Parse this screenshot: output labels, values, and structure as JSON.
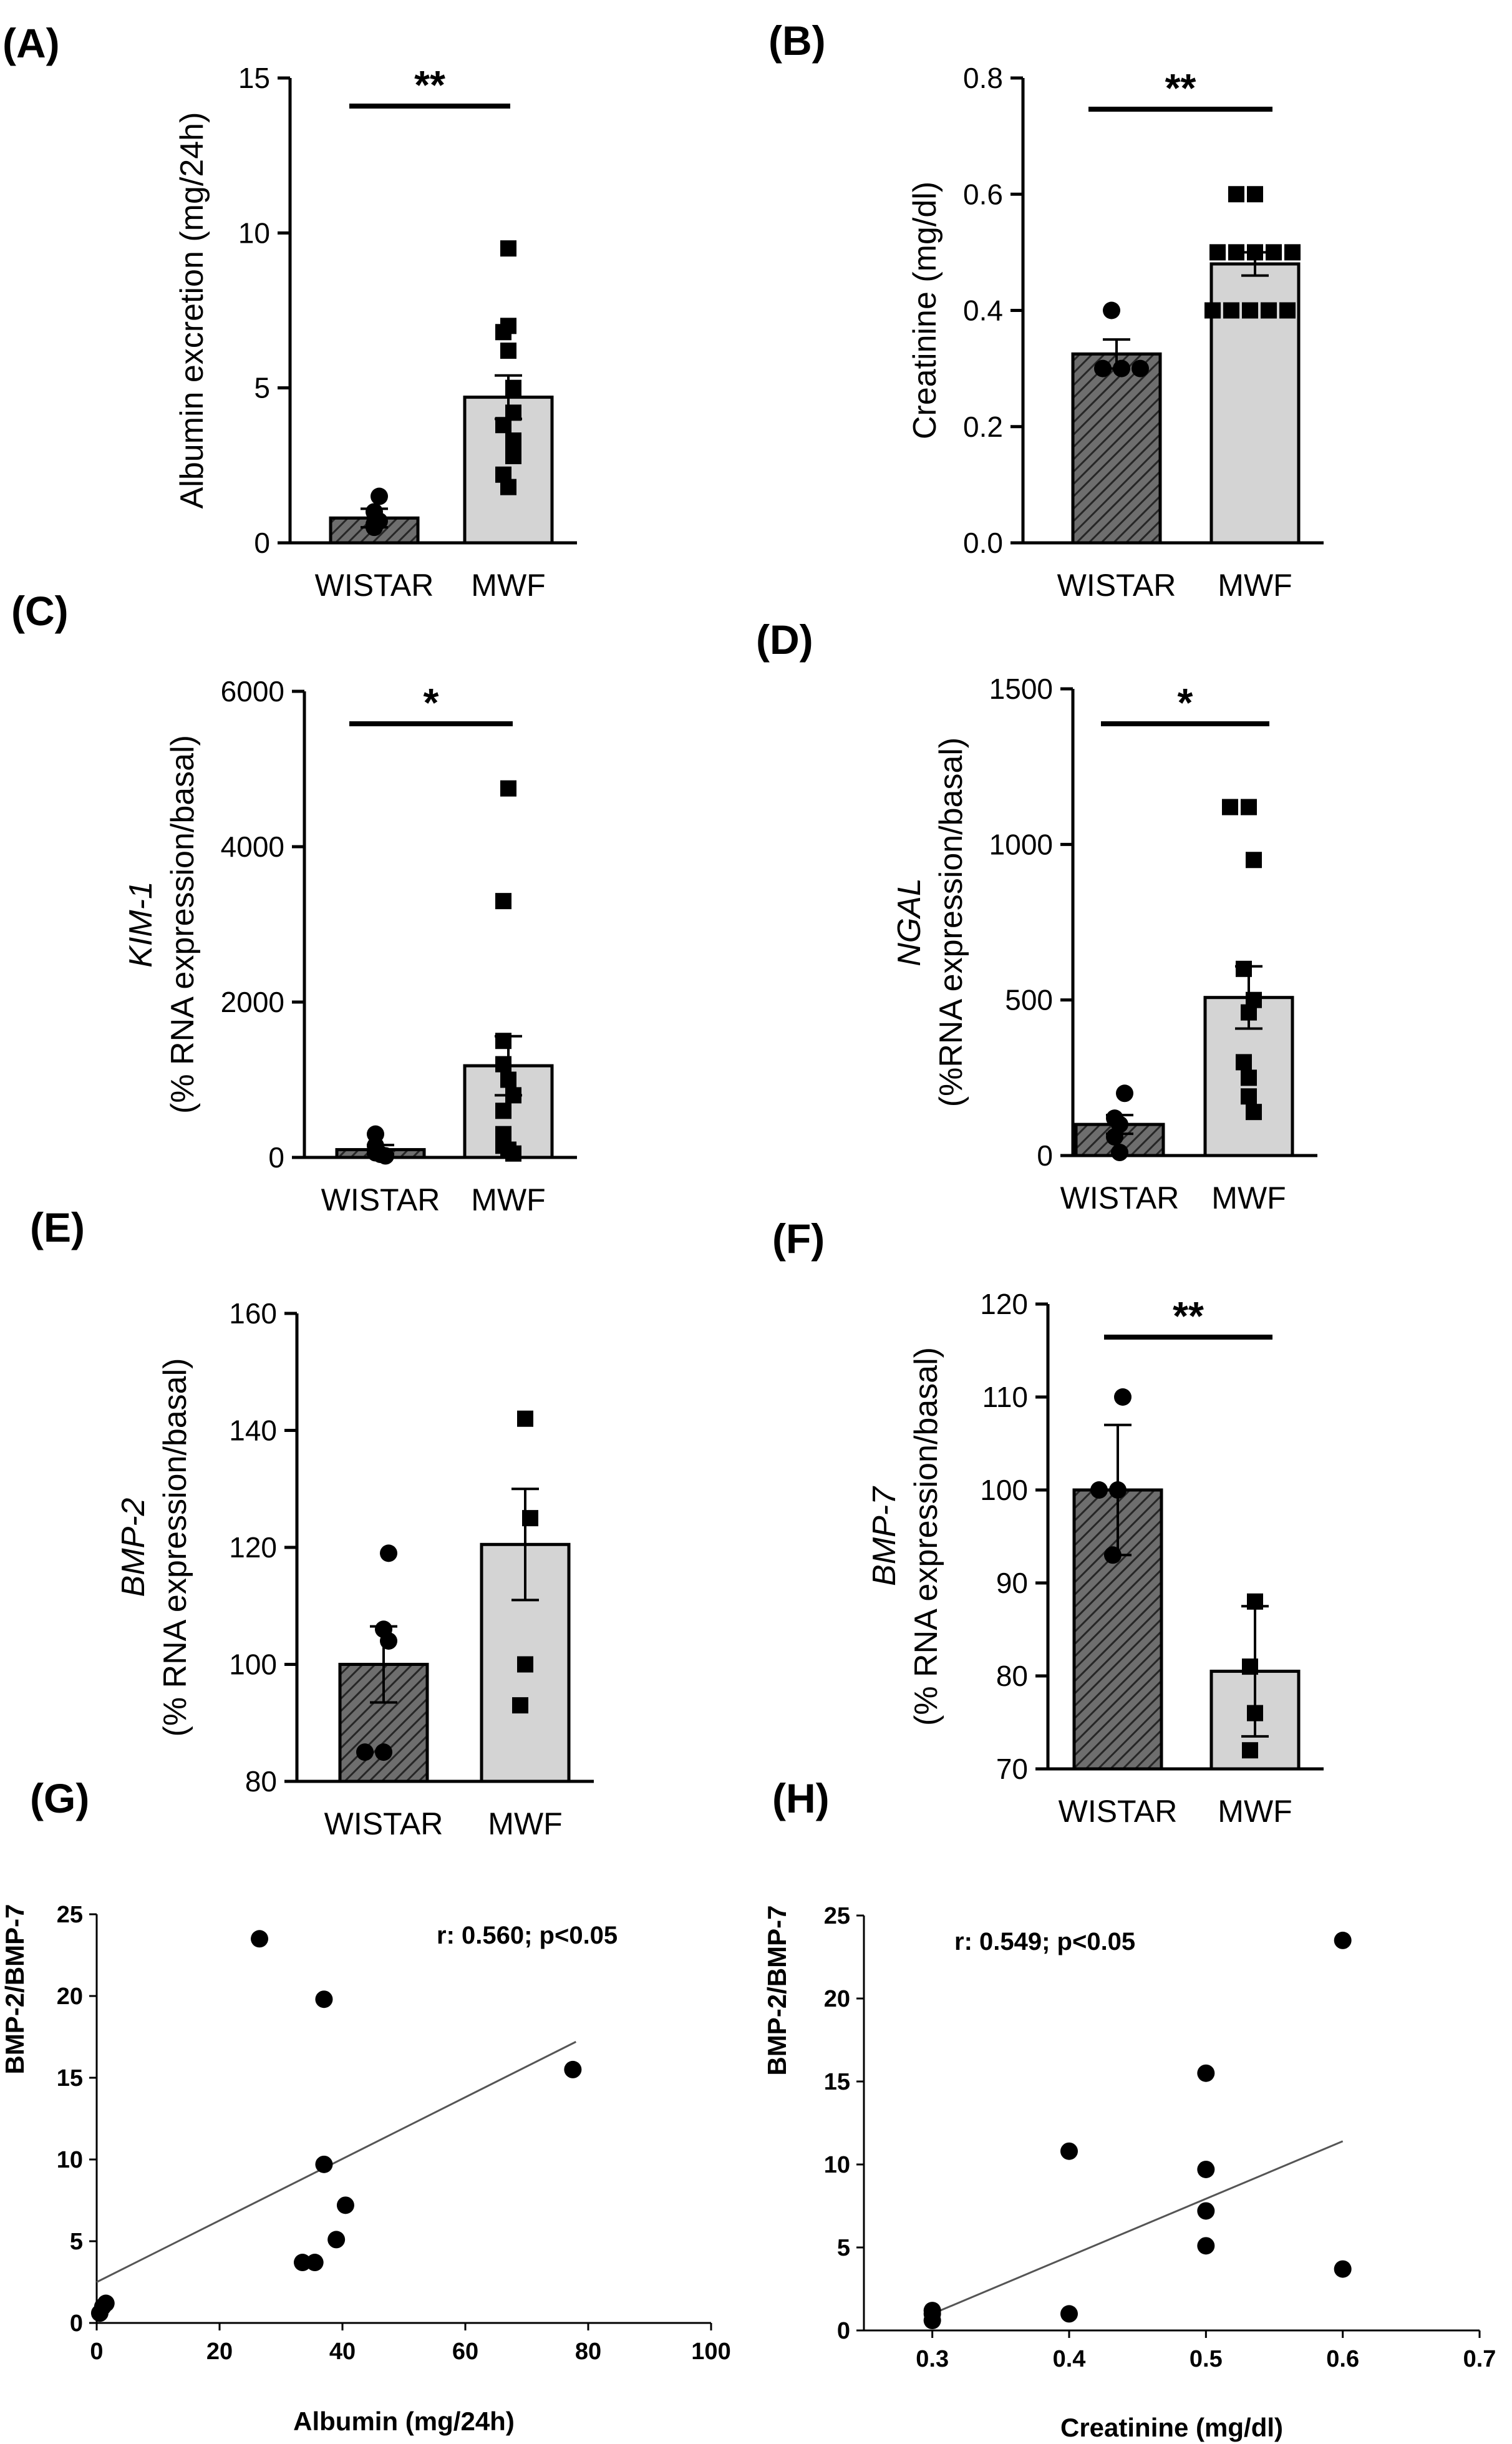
{
  "chart_data": [
    {
      "id": "A",
      "panel_label": "(A)",
      "type": "bar",
      "categories": [
        "WISTAR",
        "MWF"
      ],
      "bar_values": [
        0.8,
        4.7
      ],
      "sem": [
        0.3,
        0.7
      ],
      "points": [
        [
          0.5,
          0.6,
          0.7,
          1.0,
          1.5
        ],
        [
          1.8,
          2.2,
          2.8,
          3.3,
          3.8,
          4.2,
          5.0,
          6.2,
          6.8,
          7.0,
          9.5
        ]
      ],
      "ylabel": "Albumin excretion (mg/24h)",
      "ylabel_italic_prefix": "",
      "ylim": [
        0,
        15
      ],
      "yticks": [
        0,
        5,
        10,
        15
      ],
      "significance": "**"
    },
    {
      "id": "B",
      "panel_label": "(B)",
      "type": "bar",
      "categories": [
        "WISTAR",
        "MWF"
      ],
      "bar_values": [
        0.325,
        0.48
      ],
      "sem": [
        0.025,
        0.02
      ],
      "points": [
        [
          0.3,
          0.3,
          0.3,
          0.4
        ],
        [
          0.4,
          0.4,
          0.4,
          0.4,
          0.4,
          0.5,
          0.5,
          0.5,
          0.5,
          0.5,
          0.6,
          0.6
        ]
      ],
      "ylabel": "Creatinine (mg/dl)",
      "ylabel_italic_prefix": "",
      "ylim": [
        0,
        0.8
      ],
      "yticks": [
        0.0,
        0.2,
        0.4,
        0.6,
        0.8
      ],
      "significance": "**"
    },
    {
      "id": "C",
      "panel_label": "(C)",
      "type": "bar",
      "categories": [
        "WISTAR",
        "MWF"
      ],
      "bar_values": [
        100,
        1180
      ],
      "sem": [
        60,
        380
      ],
      "points": [
        [
          20,
          40,
          60,
          150,
          300
        ],
        [
          50,
          100,
          150,
          300,
          600,
          800,
          1000,
          1200,
          1500,
          3300,
          4750
        ]
      ],
      "ylabel": "(% RNA expression/basal)",
      "ylabel_italic_prefix": "KIM-1",
      "ylim": [
        0,
        6000
      ],
      "yticks": [
        0,
        2000,
        4000,
        6000
      ],
      "significance": "*"
    },
    {
      "id": "D",
      "panel_label": "(D)",
      "type": "bar",
      "categories": [
        "WISTAR",
        "MWF"
      ],
      "bar_values": [
        100,
        508
      ],
      "sem": [
        30,
        100
      ],
      "points": [
        [
          10,
          60,
          100,
          120,
          200
        ],
        [
          140,
          190,
          250,
          300,
          460,
          500,
          600,
          950,
          1120,
          1120
        ]
      ],
      "ylabel": "(%RNA expression/basal)",
      "ylabel_italic_prefix": "NGAL",
      "ylim": [
        0,
        1500
      ],
      "yticks": [
        0,
        500,
        1000,
        1500
      ],
      "significance": "*"
    },
    {
      "id": "E",
      "panel_label": "(E)",
      "type": "bar",
      "categories": [
        "WISTAR",
        "MWF"
      ],
      "bar_values": [
        100,
        120.5
      ],
      "sem": [
        6.5,
        9.5
      ],
      "points": [
        [
          85,
          85,
          104,
          106,
          119
        ],
        [
          93,
          100,
          125,
          142
        ]
      ],
      "ylabel": "(% RNA expression/basal)",
      "ylabel_italic_prefix": "BMP-2",
      "ylim": [
        80,
        160
      ],
      "yticks": [
        80,
        100,
        120,
        140,
        160
      ],
      "significance": ""
    },
    {
      "id": "F",
      "panel_label": "(F)",
      "type": "bar",
      "categories": [
        "WISTAR",
        "MWF"
      ],
      "bar_values": [
        100,
        80.5
      ],
      "sem": [
        7,
        7
      ],
      "points": [
        [
          93,
          100,
          100,
          110
        ],
        [
          72,
          76,
          81,
          88
        ]
      ],
      "ylabel": "(% RNA expression/basal)",
      "ylabel_italic_prefix": "BMP-7",
      "ylim": [
        70,
        120
      ],
      "yticks": [
        70,
        80,
        90,
        100,
        110,
        120
      ],
      "significance": "**"
    },
    {
      "id": "G",
      "panel_label": "(G)",
      "type": "scatter",
      "x": [
        0.5,
        1.0,
        1.5,
        26.5,
        33.5,
        35.5,
        37.0,
        37.0,
        39.0,
        40.5,
        77.5
      ],
      "y": [
        0.6,
        1.0,
        1.2,
        23.5,
        3.7,
        3.7,
        19.8,
        9.7,
        5.1,
        7.2,
        15.5
      ],
      "fit_line": {
        "x": [
          0,
          78
        ],
        "y": [
          2.5,
          17.2
        ]
      },
      "xlabel": "Albumin (mg/24h)",
      "ylabel": "BMP-2/BMP-7",
      "xlim": [
        0,
        100
      ],
      "ylim": [
        0,
        25
      ],
      "xticks": [
        0,
        20,
        40,
        60,
        80,
        100
      ],
      "yticks": [
        0,
        5,
        10,
        15,
        20,
        25
      ],
      "annotation": "r: 0.560; p<0.05"
    },
    {
      "id": "H",
      "panel_label": "(H)",
      "type": "scatter",
      "x": [
        0.3,
        0.3,
        0.3,
        0.4,
        0.4,
        0.5,
        0.5,
        0.5,
        0.5,
        0.6,
        0.6
      ],
      "y": [
        0.6,
        1.0,
        1.2,
        1.0,
        10.8,
        5.1,
        7.2,
        9.7,
        15.5,
        3.7,
        23.5
      ],
      "fit_line": {
        "x": [
          0.3,
          0.6
        ],
        "y": [
          1.0,
          11.4
        ]
      },
      "xlabel": "Creatinine (mg/dl)",
      "ylabel": "BMP-2/BMP-7",
      "xlim": [
        0.25,
        0.7
      ],
      "ylim": [
        0,
        25
      ],
      "xticks": [
        0.3,
        0.4,
        0.5,
        0.6,
        0.7
      ],
      "yticks": [
        0,
        5,
        10,
        15,
        20,
        25
      ],
      "annotation": "r: 0.549; p<0.05"
    }
  ]
}
